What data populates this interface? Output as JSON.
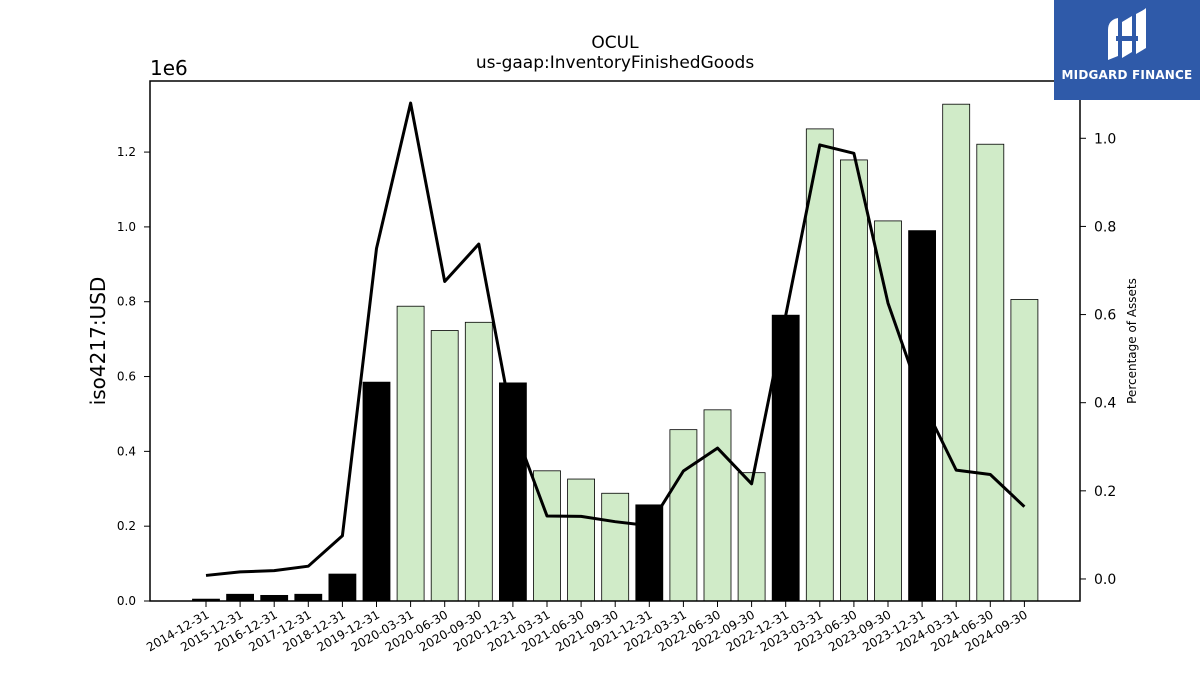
{
  "chart_data": {
    "type": "bar",
    "title": "OCUL",
    "subtitle": "us-gaap:InventoryFinishedGoods",
    "ylabel": "iso4217:USD",
    "y_multiplier": "1e6",
    "ylabel_right": "Percentage of Assets",
    "ylim": [
      0,
      1.39
    ],
    "ylim_right": [
      -0.05,
      1.13
    ],
    "yticks": [
      "0.0",
      "0.2",
      "0.4",
      "0.6",
      "0.8",
      "1.0",
      "1.2"
    ],
    "yticks_right": [
      "0.0",
      "0.2",
      "0.4",
      "0.6",
      "0.8",
      "1.0"
    ],
    "grid": false,
    "categories": [
      "2014-12-31",
      "2015-12-31",
      "2016-12-31",
      "2017-12-31",
      "2018-12-31",
      "2019-12-31",
      "2020-03-31",
      "2020-06-30",
      "2020-09-30",
      "2020-12-31",
      "2021-03-31",
      "2021-06-30",
      "2021-09-30",
      "2021-12-31",
      "2022-03-31",
      "2022-06-30",
      "2022-09-30",
      "2022-12-31",
      "2023-03-31",
      "2023-06-30",
      "2023-09-30",
      "2023-12-31",
      "2024-03-31",
      "2024-06-30",
      "2024-09-30"
    ],
    "series": [
      {
        "type": "bar",
        "values": [
          0.005,
          0.018,
          0.015,
          0.018,
          0.072,
          0.585,
          0.788,
          0.723,
          0.745,
          0.583,
          0.348,
          0.326,
          0.288,
          0.257,
          0.458,
          0.511,
          0.343,
          0.764,
          1.262,
          1.179,
          1.016,
          0.99,
          1.328,
          1.221,
          0.806
        ],
        "annual": [
          true,
          true,
          true,
          true,
          true,
          true,
          false,
          false,
          false,
          true,
          false,
          false,
          false,
          true,
          false,
          false,
          false,
          true,
          false,
          false,
          false,
          true,
          false,
          false,
          false
        ],
        "color_annual": "#000000",
        "color_quarterly": "#d0ebc8"
      },
      {
        "type": "line",
        "axis": "right",
        "values": [
          0.008,
          0.016,
          0.019,
          0.029,
          0.098,
          0.75,
          1.08,
          0.675,
          0.76,
          0.35,
          0.143,
          0.142,
          0.13,
          0.121,
          0.245,
          0.297,
          0.216,
          0.598,
          0.985,
          0.966,
          0.626,
          0.405,
          0.247,
          0.237,
          0.164
        ],
        "color": "#000000"
      }
    ]
  },
  "logo": {
    "text": "MIDGARD FINANCE",
    "background": "#2f5aa9"
  }
}
